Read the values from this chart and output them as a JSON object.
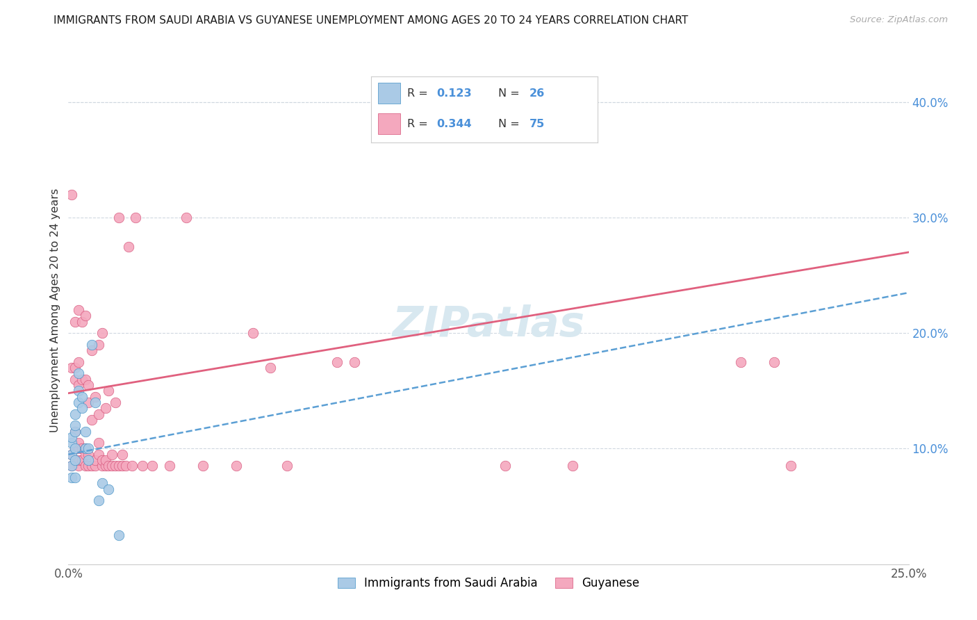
{
  "title": "IMMIGRANTS FROM SAUDI ARABIA VS GUYANESE UNEMPLOYMENT AMONG AGES 20 TO 24 YEARS CORRELATION CHART",
  "source": "Source: ZipAtlas.com",
  "ylabel": "Unemployment Among Ages 20 to 24 years",
  "xlim": [
    0,
    0.25
  ],
  "ylim": [
    0.0,
    0.44
  ],
  "xtick_positions": [
    0.0,
    0.05,
    0.1,
    0.15,
    0.2,
    0.25
  ],
  "xtick_labels": [
    "0.0%",
    "",
    "",
    "",
    "",
    "25.0%"
  ],
  "yticks_right": [
    0.1,
    0.2,
    0.3,
    0.4
  ],
  "ytick_labels_right": [
    "10.0%",
    "20.0%",
    "30.0%",
    "40.0%"
  ],
  "legend_label1": "Immigrants from Saudi Arabia",
  "legend_label2": "Guyanese",
  "color_blue": "#aacae6",
  "color_pink": "#f4a8be",
  "color_blue_line": "#5b9fd4",
  "color_pink_line": "#e0607e",
  "color_blue_dark": "#4292c6",
  "color_pink_dark": "#d6547a",
  "blue_line_x": [
    0.0,
    0.25
  ],
  "blue_line_y": [
    0.095,
    0.235
  ],
  "pink_line_x": [
    0.0,
    0.25
  ],
  "pink_line_y": [
    0.148,
    0.27
  ],
  "blue_x": [
    0.001,
    0.001,
    0.001,
    0.001,
    0.001,
    0.002,
    0.002,
    0.002,
    0.002,
    0.002,
    0.002,
    0.003,
    0.003,
    0.003,
    0.004,
    0.004,
    0.005,
    0.005,
    0.006,
    0.006,
    0.007,
    0.008,
    0.009,
    0.01,
    0.012,
    0.015
  ],
  "blue_y": [
    0.085,
    0.095,
    0.105,
    0.11,
    0.075,
    0.09,
    0.1,
    0.115,
    0.12,
    0.13,
    0.075,
    0.14,
    0.15,
    0.165,
    0.135,
    0.145,
    0.1,
    0.115,
    0.09,
    0.1,
    0.19,
    0.14,
    0.055,
    0.07,
    0.065,
    0.025
  ],
  "pink_x": [
    0.001,
    0.001,
    0.001,
    0.001,
    0.002,
    0.002,
    0.002,
    0.002,
    0.002,
    0.003,
    0.003,
    0.003,
    0.003,
    0.003,
    0.003,
    0.003,
    0.004,
    0.004,
    0.004,
    0.004,
    0.005,
    0.005,
    0.005,
    0.005,
    0.005,
    0.006,
    0.006,
    0.006,
    0.006,
    0.007,
    0.007,
    0.007,
    0.008,
    0.008,
    0.008,
    0.009,
    0.009,
    0.009,
    0.009,
    0.01,
    0.01,
    0.01,
    0.011,
    0.011,
    0.011,
    0.012,
    0.012,
    0.013,
    0.013,
    0.014,
    0.014,
    0.015,
    0.015,
    0.016,
    0.016,
    0.017,
    0.018,
    0.019,
    0.02,
    0.022,
    0.025,
    0.03,
    0.035,
    0.04,
    0.05,
    0.055,
    0.06,
    0.065,
    0.08,
    0.085,
    0.13,
    0.15,
    0.2,
    0.21,
    0.215
  ],
  "pink_y": [
    0.085,
    0.095,
    0.17,
    0.32,
    0.1,
    0.115,
    0.16,
    0.17,
    0.21,
    0.085,
    0.09,
    0.1,
    0.105,
    0.155,
    0.175,
    0.22,
    0.09,
    0.1,
    0.16,
    0.21,
    0.085,
    0.095,
    0.1,
    0.16,
    0.215,
    0.085,
    0.095,
    0.14,
    0.155,
    0.085,
    0.125,
    0.185,
    0.085,
    0.09,
    0.145,
    0.095,
    0.105,
    0.13,
    0.19,
    0.085,
    0.09,
    0.2,
    0.085,
    0.09,
    0.135,
    0.085,
    0.15,
    0.085,
    0.095,
    0.085,
    0.14,
    0.085,
    0.3,
    0.085,
    0.095,
    0.085,
    0.275,
    0.085,
    0.3,
    0.085,
    0.085,
    0.085,
    0.3,
    0.085,
    0.085,
    0.2,
    0.17,
    0.085,
    0.175,
    0.175,
    0.085,
    0.085,
    0.175,
    0.175,
    0.085
  ],
  "watermark": "ZIPatlas",
  "watermark_color": "#d8e8f0",
  "bg_color": "#ffffff",
  "grid_color": "#d0d8e0",
  "spine_color": "#cccccc",
  "tick_color": "#555555",
  "right_tick_color": "#4a90d9",
  "title_color": "#1a1a1a",
  "source_color": "#aaaaaa",
  "legend_box_color": "#cccccc"
}
